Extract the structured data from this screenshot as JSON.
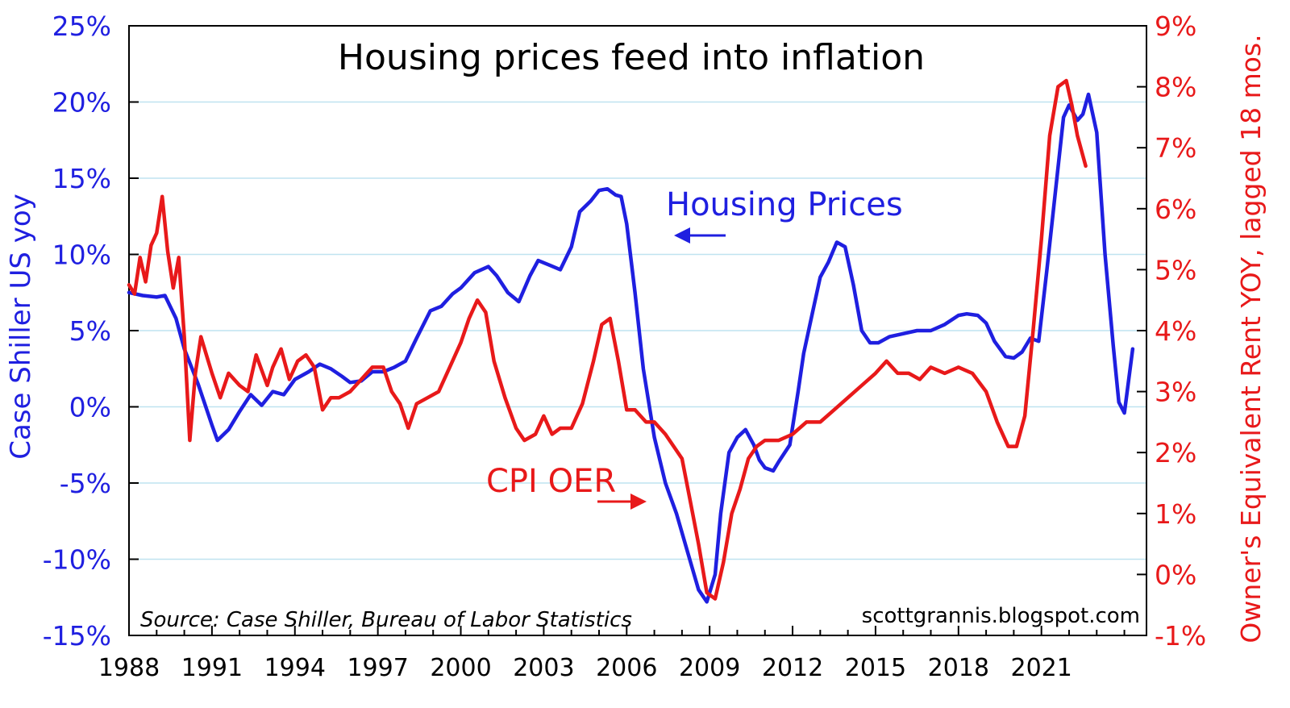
{
  "chart_data": {
    "type": "line",
    "title": "Housing prices feed into inflation",
    "ylabel_left": "Case Shiller US yoy",
    "ylabel_right": "Owner's Equivalent Rent YOY, lagged 18 mos.",
    "ylim_left": [
      -15,
      25
    ],
    "ylim_right": [
      -1,
      9
    ],
    "yticks_left": [
      "25%",
      "20%",
      "15%",
      "10%",
      "5%",
      "0%",
      "-5%",
      "-10%",
      "-15%"
    ],
    "yticks_right": [
      "9%",
      "8%",
      "7%",
      "6%",
      "5%",
      "4%",
      "3%",
      "2%",
      "1%",
      "0%",
      "-1%"
    ],
    "xlim": [
      1988,
      2024.8
    ],
    "xticks": [
      "1988",
      "1991",
      "1994",
      "1997",
      "2000",
      "2003",
      "2006",
      "2009",
      "2012",
      "2015",
      "2018",
      "2021"
    ],
    "grid": "horizontal",
    "annotations": {
      "housing": "Housing Prices",
      "cpi": "CPI OER",
      "source": "Source: Case Shiller, Bureau of Labor Statistics",
      "credit": "scottgrannis.blogspot.com"
    },
    "colors": {
      "housing": "#1f1fe0",
      "cpi": "#e8191a",
      "grid": "#bfe3f0"
    },
    "series": [
      {
        "axis": "left",
        "color": "#1f1fe0",
        "x": [
          1988.0,
          1988.5,
          1989.0,
          1989.3,
          1989.7,
          1990.0,
          1990.5,
          1991.0,
          1991.2,
          1991.6,
          1992.0,
          1992.4,
          1992.8,
          1993.2,
          1993.6,
          1994.0,
          1994.5,
          1994.9,
          1995.3,
          1995.7,
          1996.0,
          1996.4,
          1996.8,
          1997.2,
          1997.6,
          1998.0,
          1998.4,
          1998.9,
          1999.3,
          1999.7,
          2000.0,
          2000.5,
          2001.0,
          2001.3,
          2001.7,
          2002.1,
          2002.5,
          2002.8,
          2003.2,
          2003.6,
          2004.0,
          2004.3,
          2004.7,
          2005.0,
          2005.3,
          2005.6,
          2005.8,
          2006.0,
          2006.3,
          2006.6,
          2007.0,
          2007.4,
          2007.8,
          2008.2,
          2008.6,
          2008.9,
          2009.2,
          2009.4,
          2009.7,
          2010.0,
          2010.3,
          2010.6,
          2010.8,
          2011.0,
          2011.3,
          2011.5,
          2011.9,
          2012.2,
          2012.4,
          2012.7,
          2013.0,
          2013.3,
          2013.6,
          2013.9,
          2014.2,
          2014.5,
          2014.8,
          2015.1,
          2015.5,
          2016.0,
          2016.5,
          2017.0,
          2017.5,
          2018.0,
          2018.3,
          2018.7,
          2019.0,
          2019.3,
          2019.7,
          2020.0,
          2020.3,
          2020.6,
          2020.9,
          2021.2,
          2021.5,
          2021.8,
          2022.0,
          2022.3,
          2022.5,
          2022.7,
          2023.0,
          2023.3,
          2023.6,
          2023.8,
          2024.0,
          2024.3
        ],
        "values": [
          7.5,
          7.3,
          7.2,
          7.3,
          5.8,
          3.8,
          1.5,
          -1.2,
          -2.2,
          -1.5,
          -0.3,
          0.8,
          0.1,
          1.0,
          0.8,
          1.8,
          2.3,
          2.8,
          2.5,
          2.0,
          1.6,
          1.7,
          2.3,
          2.3,
          2.6,
          3.0,
          4.5,
          6.3,
          6.6,
          7.4,
          7.8,
          8.8,
          9.2,
          8.6,
          7.5,
          6.9,
          8.6,
          9.6,
          9.3,
          9.0,
          10.5,
          12.8,
          13.5,
          14.2,
          14.3,
          13.9,
          13.8,
          12.0,
          7.5,
          2.5,
          -2.0,
          -5.0,
          -7.0,
          -9.5,
          -12.0,
          -12.8,
          -11.0,
          -7.0,
          -3.0,
          -2.0,
          -1.5,
          -2.5,
          -3.5,
          -4.0,
          -4.2,
          -3.6,
          -2.5,
          1.0,
          3.5,
          6.0,
          8.5,
          9.5,
          10.8,
          10.5,
          8.0,
          5.0,
          4.2,
          4.2,
          4.6,
          4.8,
          5.0,
          5.0,
          5.4,
          6.0,
          6.1,
          6.0,
          5.5,
          4.3,
          3.3,
          3.2,
          3.6,
          4.5,
          4.3,
          9.0,
          14.0,
          19.0,
          19.8,
          18.8,
          19.2,
          20.5,
          18.0,
          10.0,
          4.0,
          0.3,
          -0.4,
          3.8
        ]
      },
      {
        "axis": "right",
        "color": "#e8191a",
        "x": [
          1988.0,
          1988.2,
          1988.4,
          1988.6,
          1988.8,
          1989.0,
          1989.2,
          1989.4,
          1989.6,
          1989.8,
          1990.0,
          1990.2,
          1990.4,
          1990.6,
          1990.8,
          1991.0,
          1991.3,
          1991.6,
          1992.0,
          1992.3,
          1992.6,
          1993.0,
          1993.2,
          1993.5,
          1993.8,
          1994.1,
          1994.4,
          1994.7,
          1995.0,
          1995.3,
          1995.6,
          1996.0,
          1996.4,
          1996.8,
          1997.2,
          1997.5,
          1997.8,
          1998.1,
          1998.4,
          1998.8,
          1999.2,
          1999.6,
          2000.0,
          2000.3,
          2000.6,
          2000.9,
          2001.2,
          2001.6,
          2002.0,
          2002.3,
          2002.7,
          2003.0,
          2003.3,
          2003.6,
          2004.0,
          2004.4,
          2004.8,
          2005.1,
          2005.4,
          2005.7,
          2006.0,
          2006.3,
          2006.7,
          2007.0,
          2007.4,
          2007.7,
          2008.0,
          2008.3,
          2008.6,
          2008.9,
          2009.2,
          2009.5,
          2009.8,
          2010.1,
          2010.4,
          2010.7,
          2011.0,
          2011.5,
          2012.0,
          2012.5,
          2013.0,
          2013.5,
          2014.0,
          2014.5,
          2015.0,
          2015.4,
          2015.8,
          2016.2,
          2016.6,
          2017.0,
          2017.5,
          2018.0,
          2018.5,
          2019.0,
          2019.4,
          2019.8,
          2020.1,
          2020.4,
          2020.7,
          2021.0,
          2021.3,
          2021.6,
          2021.9,
          2022.1,
          2022.3,
          2022.6
        ],
        "values": [
          4.75,
          4.6,
          5.2,
          4.8,
          5.4,
          5.6,
          6.2,
          5.3,
          4.7,
          5.2,
          3.9,
          2.2,
          3.3,
          3.9,
          3.6,
          3.3,
          2.9,
          3.3,
          3.1,
          3.0,
          3.6,
          3.1,
          3.4,
          3.7,
          3.2,
          3.5,
          3.6,
          3.4,
          2.7,
          2.9,
          2.9,
          3.0,
          3.2,
          3.4,
          3.4,
          3.0,
          2.8,
          2.4,
          2.8,
          2.9,
          3.0,
          3.4,
          3.8,
          4.2,
          4.5,
          4.3,
          3.5,
          2.9,
          2.4,
          2.2,
          2.3,
          2.6,
          2.3,
          2.4,
          2.4,
          2.8,
          3.5,
          4.1,
          4.2,
          3.5,
          2.7,
          2.7,
          2.5,
          2.5,
          2.3,
          2.1,
          1.9,
          1.2,
          0.5,
          -0.3,
          -0.4,
          0.2,
          1.0,
          1.4,
          1.9,
          2.1,
          2.2,
          2.2,
          2.3,
          2.5,
          2.5,
          2.7,
          2.9,
          3.1,
          3.3,
          3.5,
          3.3,
          3.3,
          3.2,
          3.4,
          3.3,
          3.4,
          3.3,
          3.0,
          2.5,
          2.1,
          2.1,
          2.6,
          4.0,
          5.5,
          7.2,
          8.0,
          8.1,
          7.7,
          7.2,
          6.7
        ]
      }
    ]
  }
}
